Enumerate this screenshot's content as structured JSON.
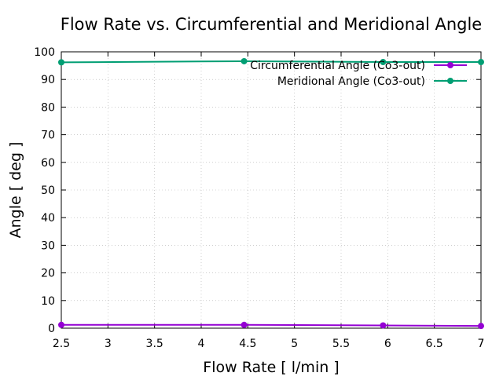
{
  "chart_data": {
    "type": "line",
    "title": "Flow Rate vs. Circumferential and Meridional Angle",
    "xlabel": "Flow Rate [ l/min ]",
    "ylabel": "Angle [ deg ]",
    "xlim": [
      2.5,
      7
    ],
    "ylim": [
      0,
      100
    ],
    "xticks": [
      2.5,
      3,
      3.5,
      4,
      4.5,
      5,
      5.5,
      6,
      6.5,
      7
    ],
    "xtick_labels": [
      "2.5",
      "3",
      "3.5",
      "4",
      "4.5",
      "5",
      "5.5",
      "6",
      "6.5",
      "7"
    ],
    "yticks": [
      0,
      10,
      20,
      30,
      40,
      50,
      60,
      70,
      80,
      90,
      100
    ],
    "ytick_labels": [
      "0",
      "10",
      "20",
      "30",
      "40",
      "50",
      "60",
      "70",
      "80",
      "90",
      "100"
    ],
    "grid": true,
    "legend_position": "top-right",
    "series": [
      {
        "name": "Circumferential Angle (Co3-out)",
        "color": "#9400d3",
        "x": [
          2.5,
          4.46,
          5.95,
          7
        ],
        "y": [
          1.2,
          1.2,
          1.0,
          0.8
        ]
      },
      {
        "name": "Meridional Angle (Co3-out)",
        "color": "#009e73",
        "x": [
          2.5,
          4.46,
          5.95,
          7
        ],
        "y": [
          96.2,
          96.6,
          96.3,
          96.3
        ]
      }
    ]
  }
}
